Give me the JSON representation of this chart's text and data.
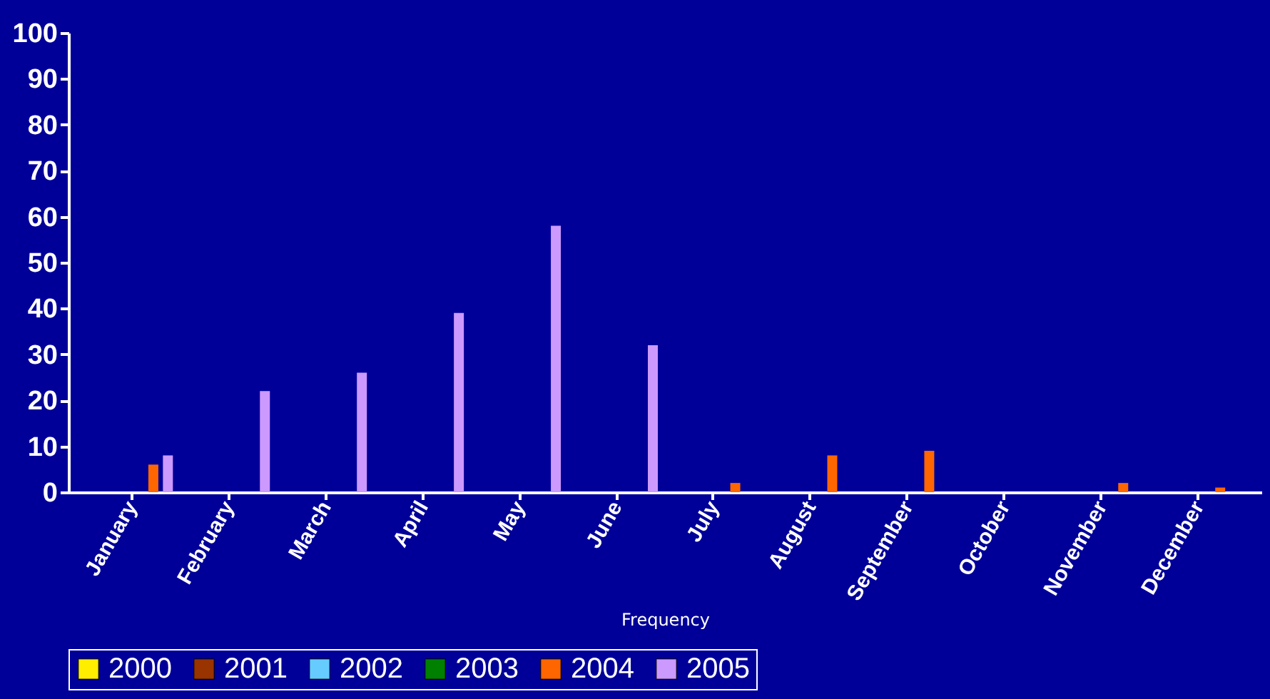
{
  "chart_data": {
    "type": "bar",
    "xlabel": "Frequency",
    "categories": [
      "January",
      "February",
      "March",
      "April",
      "May",
      "June",
      "July",
      "August",
      "September",
      "October",
      "November",
      "December"
    ],
    "series": [
      {
        "name": "2000",
        "color": "#ffee00",
        "values": [
          null,
          null,
          null,
          null,
          null,
          null,
          null,
          null,
          null,
          null,
          null,
          null
        ]
      },
      {
        "name": "2001",
        "color": "#993300",
        "values": [
          null,
          null,
          null,
          null,
          null,
          null,
          null,
          null,
          null,
          null,
          null,
          null
        ]
      },
      {
        "name": "2002",
        "color": "#66ccff",
        "values": [
          null,
          null,
          null,
          null,
          null,
          null,
          null,
          null,
          null,
          null,
          null,
          null
        ]
      },
      {
        "name": "2003",
        "color": "#008000",
        "values": [
          null,
          null,
          null,
          null,
          null,
          null,
          null,
          null,
          null,
          null,
          null,
          null
        ]
      },
      {
        "name": "2004",
        "color": "#ff6600",
        "values": [
          6,
          null,
          null,
          null,
          null,
          null,
          2,
          8,
          9,
          null,
          2,
          1
        ]
      },
      {
        "name": "2005",
        "color": "#cc99ff",
        "values": [
          8,
          22,
          26,
          39,
          58,
          32,
          null,
          null,
          null,
          null,
          null,
          null
        ]
      }
    ],
    "ylim": [
      0,
      100
    ],
    "yticks": [
      0,
      10,
      20,
      30,
      40,
      50,
      60,
      70,
      80,
      90,
      100
    ],
    "grid": false,
    "legend": "bottom"
  }
}
